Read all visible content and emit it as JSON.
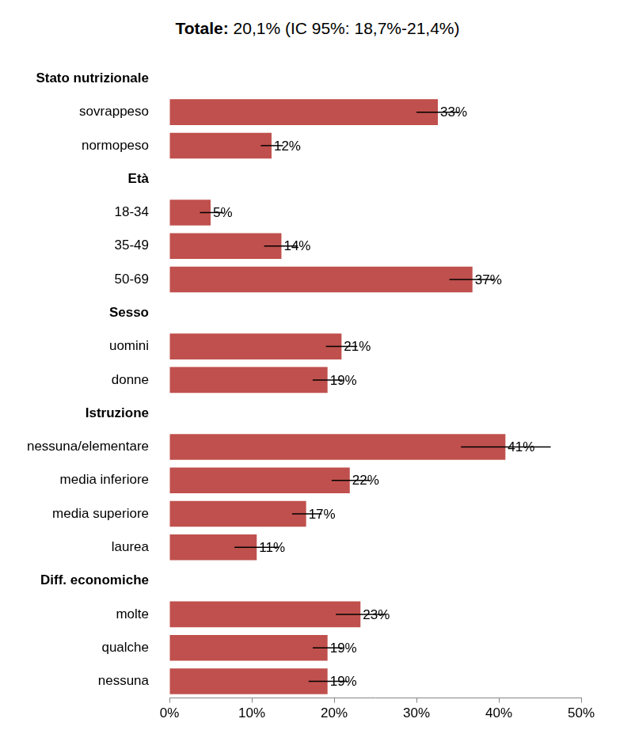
{
  "chart_data": {
    "type": "bar",
    "orientation": "horizontal",
    "title": "Totale: 20,1% (IC 95%: 18,7%-21,4%)",
    "color": "#c0504d",
    "grid": false,
    "data_labels": true,
    "xlim": [
      0,
      50
    ],
    "xticks": [
      {
        "value": 0,
        "label": "0%"
      },
      {
        "value": 10,
        "label": "10%"
      },
      {
        "value": 20,
        "label": "20%"
      },
      {
        "value": 30,
        "label": "30%"
      },
      {
        "value": 40,
        "label": "40%"
      },
      {
        "value": 50,
        "label": "50%"
      }
    ],
    "groups": [
      {
        "name": "Stato nutrizionale",
        "categories": [
          "sovrappeso",
          "normopeso"
        ],
        "values": [
          32.6,
          12.4
        ],
        "value_labels": [
          "33%",
          "12%"
        ],
        "error_low": [
          30.0,
          11.1
        ],
        "error_high": [
          35.2,
          13.8
        ]
      },
      {
        "name": "Età",
        "categories": [
          "18-34",
          "35-49",
          "50-69"
        ],
        "values": [
          5.0,
          13.6,
          36.8
        ],
        "value_labels": [
          "5%",
          "14%",
          "37%"
        ],
        "error_low": [
          3.7,
          11.5,
          34.0
        ],
        "error_high": [
          6.5,
          15.6,
          39.5
        ]
      },
      {
        "name": "Sesso",
        "categories": [
          "uomini",
          "donne"
        ],
        "values": [
          20.9,
          19.2
        ],
        "value_labels": [
          "21%",
          "19%"
        ],
        "error_low": [
          19.0,
          17.4
        ],
        "error_high": [
          22.8,
          21.0
        ]
      },
      {
        "name": "Istruzione",
        "categories": [
          "nessuna/elementare",
          "media inferiore",
          "media superiore",
          "laurea"
        ],
        "values": [
          40.8,
          21.9,
          16.6,
          10.6
        ],
        "value_labels": [
          "41%",
          "22%",
          "17%",
          "11%"
        ],
        "error_low": [
          35.4,
          19.7,
          14.9,
          7.9
        ],
        "error_high": [
          46.3,
          24.3,
          18.5,
          13.3
        ]
      },
      {
        "name": "Diff. economiche",
        "categories": [
          "molte",
          "qualche",
          "nessuna"
        ],
        "values": [
          23.2,
          19.2,
          19.2
        ],
        "value_labels": [
          "23%",
          "19%",
          "19%"
        ],
        "error_low": [
          20.2,
          17.4,
          16.9
        ],
        "error_high": [
          26.3,
          21.0,
          21.6
        ]
      }
    ]
  }
}
